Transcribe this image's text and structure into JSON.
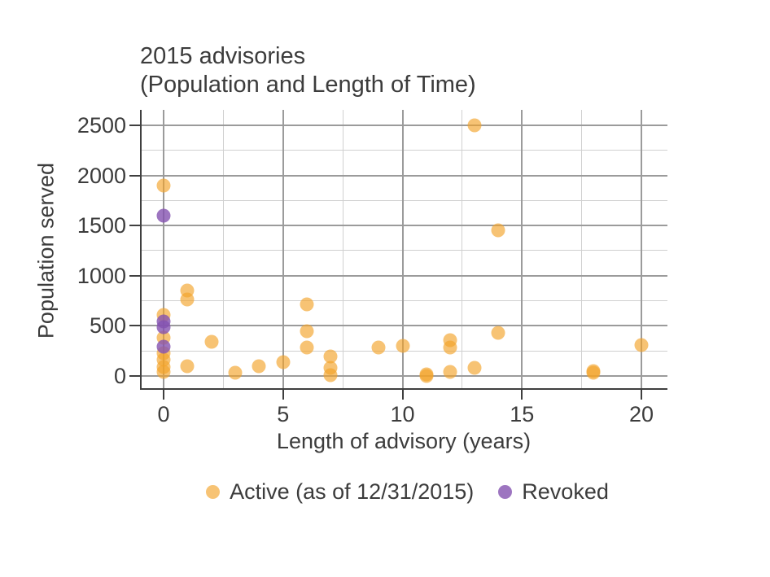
{
  "title": {
    "line1": "2015 advisories",
    "line2": "(Population and Length of Time)"
  },
  "axes": {
    "x": {
      "label": "Length of advisory (years)",
      "tick_labels": [
        "0",
        "5",
        "10",
        "15",
        "20"
      ],
      "major_ticks": [
        0,
        5,
        10,
        15,
        20
      ],
      "minor_ticks": [
        2.5,
        7.5,
        12.5,
        17.5
      ],
      "range": [
        -0.99,
        21.09
      ]
    },
    "y": {
      "label": "Population served",
      "tick_labels": [
        "0",
        "500",
        "1000",
        "1500",
        "2000",
        "2500"
      ],
      "major_ticks": [
        0,
        500,
        1000,
        1500,
        2000,
        2500
      ],
      "minor_ticks": [
        250,
        750,
        1250,
        1750,
        2250
      ],
      "range": [
        -122,
        2654
      ]
    }
  },
  "legend": {
    "items": [
      {
        "label": "Active (as of 12/31/2015)",
        "color": "rgba(243,163,42,0.65)"
      },
      {
        "label": "Revoked",
        "color": "rgba(132,82,176,0.8)"
      }
    ]
  },
  "chart_data": {
    "type": "scatter",
    "title": "2015 advisories (Population and Length of Time)",
    "xlabel": "Length of advisory (years)",
    "ylabel": "Population served",
    "xlim": [
      -0.99,
      21.09
    ],
    "ylim": [
      -122,
      2654
    ],
    "grid": true,
    "legend_position": "bottom",
    "series": [
      {
        "name": "Active (as of 12/31/2015)",
        "color": "rgba(243,163,42,0.65)",
        "points": [
          [
            0,
            1900
          ],
          [
            0,
            610
          ],
          [
            0,
            380
          ],
          [
            0,
            230
          ],
          [
            0,
            160
          ],
          [
            0,
            90
          ],
          [
            0,
            40
          ],
          [
            1,
            850
          ],
          [
            1,
            760
          ],
          [
            1,
            100
          ],
          [
            2,
            340
          ],
          [
            3,
            30
          ],
          [
            4,
            100
          ],
          [
            5,
            140
          ],
          [
            6,
            710
          ],
          [
            6,
            450
          ],
          [
            6,
            280
          ],
          [
            7,
            195
          ],
          [
            7,
            80
          ],
          [
            7,
            10
          ],
          [
            9,
            280
          ],
          [
            10,
            300
          ],
          [
            11,
            15
          ],
          [
            11,
            0
          ],
          [
            12,
            360
          ],
          [
            12,
            280
          ],
          [
            12,
            40
          ],
          [
            13,
            2500
          ],
          [
            13,
            80
          ],
          [
            14,
            1450
          ],
          [
            14,
            430
          ],
          [
            18,
            45
          ],
          [
            18,
            30
          ],
          [
            20,
            310
          ]
        ]
      },
      {
        "name": "Revoked",
        "color": "rgba(132,82,176,0.8)",
        "points": [
          [
            0,
            1600
          ],
          [
            0,
            545
          ],
          [
            0,
            490
          ],
          [
            0,
            290
          ]
        ]
      }
    ]
  }
}
